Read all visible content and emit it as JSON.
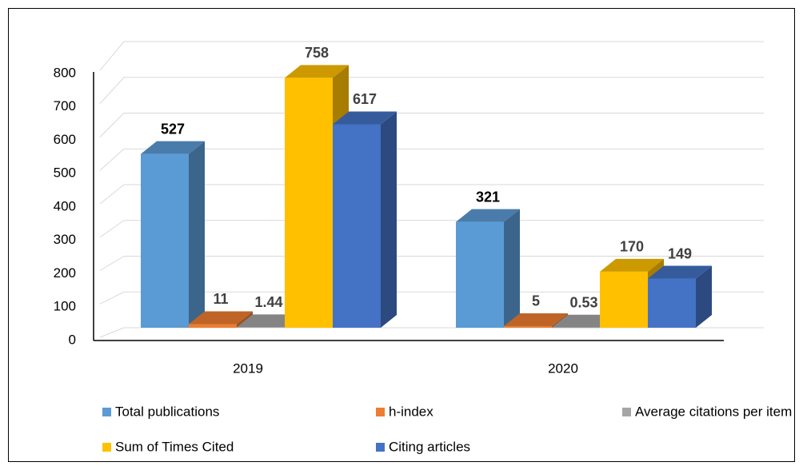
{
  "chart_data": {
    "type": "bar3d",
    "categories": [
      "2019",
      "2020"
    ],
    "series": [
      {
        "name": "Total publications",
        "color": "#5b9bd5",
        "values": [
          527,
          321
        ]
      },
      {
        "name": "h-index",
        "color": "#ed7d31",
        "values": [
          11,
          5
        ]
      },
      {
        "name": "Average citations per item",
        "color": "#a5a5a5",
        "values": [
          1.44,
          0.53
        ]
      },
      {
        "name": "Sum of Times Cited",
        "color": "#ffc000",
        "values": [
          758,
          170
        ]
      },
      {
        "name": "Citing articles",
        "color": "#4472c4",
        "values": [
          617,
          149
        ]
      }
    ],
    "ylim": [
      0,
      800
    ],
    "yticks": [
      0,
      100,
      200,
      300,
      400,
      500,
      600,
      700,
      800
    ],
    "grid": true,
    "legend": "bottom"
  }
}
